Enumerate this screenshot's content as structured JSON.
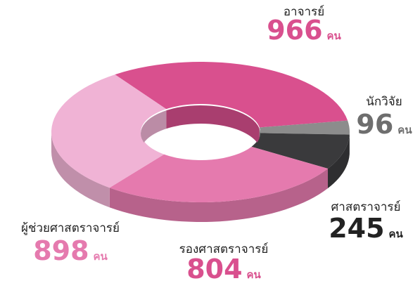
{
  "chart_data": {
    "type": "pie",
    "donut": true,
    "unit": "คน",
    "categories": [
      "อาจารย์",
      "นักวิจัย",
      "ศาสตราจารย์",
      "รองศาสตราจารย์",
      "ผู้ช่วยศาสตราจารย์"
    ],
    "values": [
      966,
      96,
      245,
      804,
      898
    ],
    "colors": [
      "#d9508e",
      "#8c8c8c",
      "#3a3a3c",
      "#e57aae",
      "#f0b3d5"
    ]
  }
}
